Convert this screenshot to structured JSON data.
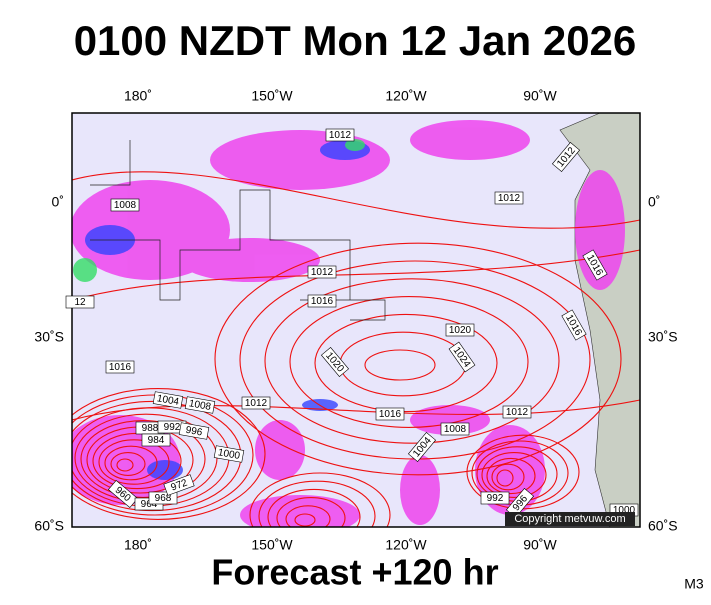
{
  "header": {
    "title": "0100 NZDT Mon 12 Jan 2026"
  },
  "map": {
    "lon_labels": [
      "180˚",
      "150˚W",
      "120˚W",
      "90˚W"
    ],
    "lat_labels": [
      "0˚",
      "30˚S",
      "60˚S"
    ],
    "isobars": [
      "1012",
      "1012",
      "1008",
      "1012",
      "1016",
      "1012",
      "1016",
      "1020",
      "1024",
      "1016",
      "1020",
      "1016",
      "1004",
      "1008",
      "1012",
      "1016",
      "1008",
      "1012",
      "1004",
      "1000",
      "988",
      "992",
      "996",
      "984",
      "960",
      "964",
      "968",
      "972",
      "992",
      "996",
      "1000",
      "12"
    ],
    "copyright": "Copyright metvuw.com"
  },
  "footer": {
    "forecast": "Forecast +120 hr",
    "model": "M3"
  }
}
